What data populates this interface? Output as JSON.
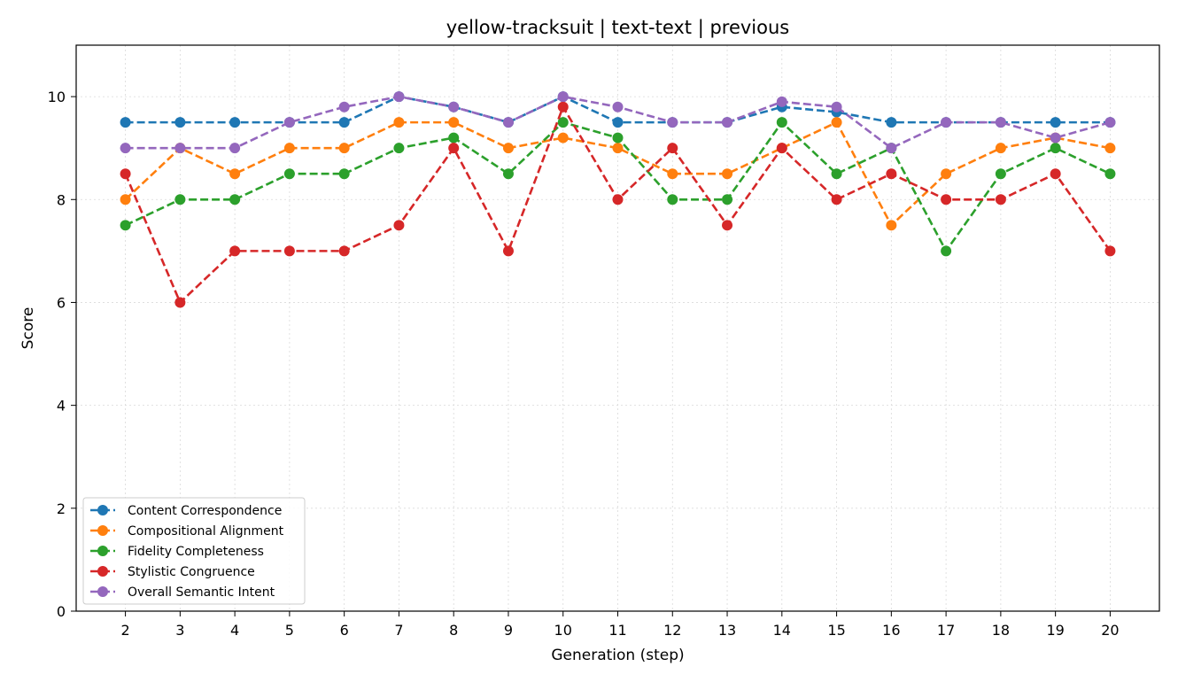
{
  "chart_data": {
    "type": "line",
    "title": "yellow-tracksuit | text-text | previous",
    "xlabel": "Generation (step)",
    "ylabel": "Score",
    "x": [
      2,
      3,
      4,
      5,
      6,
      7,
      8,
      9,
      10,
      11,
      12,
      13,
      14,
      15,
      16,
      17,
      18,
      19,
      20
    ],
    "xticks": [
      "2",
      "3",
      "4",
      "5",
      "6",
      "7",
      "8",
      "9",
      "10",
      "11",
      "12",
      "13",
      "14",
      "15",
      "16",
      "17",
      "18",
      "19",
      "20"
    ],
    "yticks": [
      "0",
      "2",
      "4",
      "6",
      "8",
      "10"
    ],
    "ylim": [
      0,
      11
    ],
    "xlim": [
      1.1,
      20.9
    ],
    "grid": true,
    "legend_position": "lower-left",
    "series": [
      {
        "name": "Content Correspondence",
        "color": "#1f77b4",
        "values": [
          9.5,
          9.5,
          9.5,
          9.5,
          9.5,
          10,
          9.8,
          9.5,
          10,
          9.5,
          9.5,
          9.5,
          9.8,
          9.7,
          9.5,
          9.5,
          9.5,
          9.5,
          9.5
        ]
      },
      {
        "name": "Compositional Alignment",
        "color": "#ff7f0e",
        "values": [
          8,
          9,
          8.5,
          9,
          9,
          9.5,
          9.5,
          9,
          9.2,
          9,
          8.5,
          8.5,
          9,
          9.5,
          7.5,
          8.5,
          9,
          9.2,
          9
        ]
      },
      {
        "name": "Fidelity Completeness",
        "color": "#2ca02c",
        "values": [
          7.5,
          8,
          8,
          8.5,
          8.5,
          9,
          9.2,
          8.5,
          9.5,
          9.2,
          8,
          8,
          9.5,
          8.5,
          9,
          7,
          8.5,
          9,
          8.5
        ]
      },
      {
        "name": "Stylistic Congruence",
        "color": "#d62728",
        "values": [
          8.5,
          6,
          7,
          7,
          7,
          7.5,
          9,
          7,
          9.8,
          8,
          9,
          7.5,
          9,
          8,
          8.5,
          8,
          8,
          8.5,
          7
        ]
      },
      {
        "name": "Overall Semantic Intent",
        "color": "#9467bd",
        "values": [
          9,
          9,
          9,
          9.5,
          9.8,
          10,
          9.8,
          9.5,
          10,
          9.8,
          9.5,
          9.5,
          9.9,
          9.8,
          9,
          9.5,
          9.5,
          9.2,
          9.5
        ]
      }
    ]
  }
}
